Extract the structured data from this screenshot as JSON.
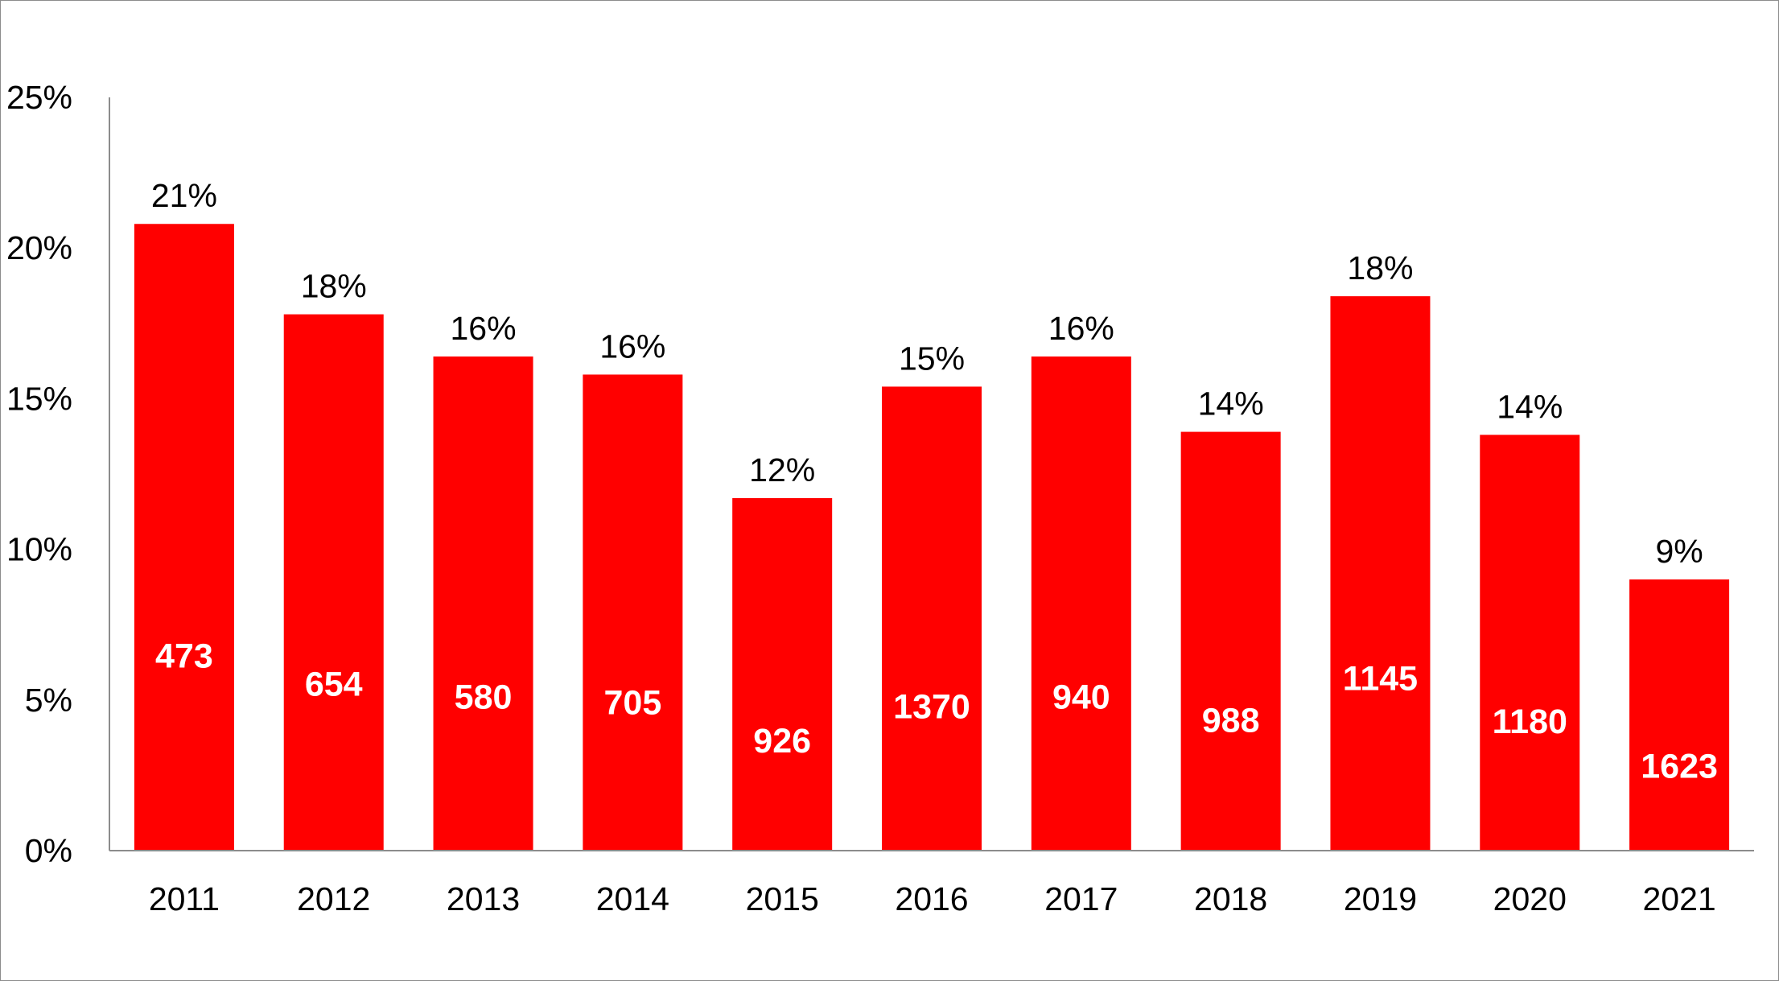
{
  "chart_data": {
    "type": "bar",
    "title": "",
    "xlabel": "",
    "ylabel": "",
    "categories": [
      "2011",
      "2012",
      "2013",
      "2014",
      "2015",
      "2016",
      "2017",
      "2018",
      "2019",
      "2020",
      "2021"
    ],
    "series": [
      {
        "values": [
          20.8,
          17.8,
          16.4,
          15.8,
          11.7,
          15.4,
          16.4,
          13.9,
          18.4,
          13.8,
          9.0
        ],
        "data_labels": [
          "21%",
          "18%",
          "16%",
          "16%",
          "12%",
          "15%",
          "16%",
          "14%",
          "18%",
          "14%",
          "9%"
        ],
        "inner_labels": [
          "473",
          "654",
          "580",
          "705",
          "926",
          "1370",
          "940",
          "988",
          "1145",
          "1180",
          "1623"
        ],
        "color": "#ff0000"
      }
    ],
    "ylim": [
      0,
      25
    ],
    "yticks": [
      0,
      5,
      10,
      15,
      20,
      25
    ],
    "ytick_labels": [
      "0%",
      "5%",
      "10%",
      "15%",
      "20%",
      "25%"
    ],
    "grid": false,
    "legend": "none"
  }
}
